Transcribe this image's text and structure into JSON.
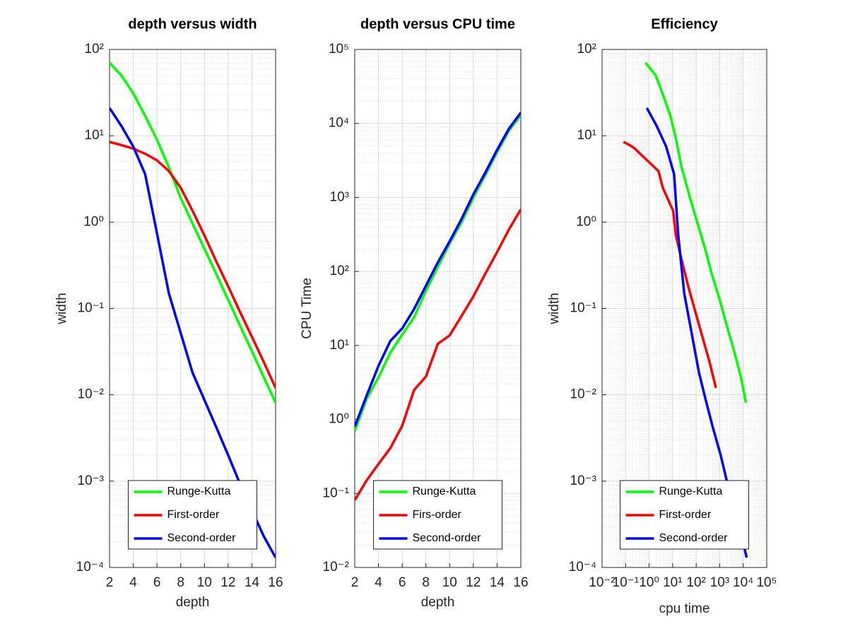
{
  "chart_data": [
    {
      "type": "line",
      "title": "depth versus width",
      "xlabel": "depth",
      "ylabel": "width",
      "x": [
        2,
        3,
        4,
        5,
        6,
        7,
        8,
        9,
        10,
        11,
        12,
        13,
        14,
        15,
        16
      ],
      "xlim": [
        2,
        16
      ],
      "xticks": [
        2,
        4,
        6,
        8,
        10,
        12,
        14,
        16
      ],
      "ylog": true,
      "ylim": [
        0.0001,
        100
      ],
      "yticks": [
        {
          "value": 0.0001,
          "label": "10⁻⁴"
        },
        {
          "value": 0.001,
          "label": "10⁻³"
        },
        {
          "value": 0.01,
          "label": "10⁻²"
        },
        {
          "value": 0.1,
          "label": "10⁻¹"
        },
        {
          "value": 1,
          "label": "10⁰"
        },
        {
          "value": 10,
          "label": "10¹"
        },
        {
          "value": 100,
          "label": "10²"
        }
      ],
      "grid": true,
      "legend": "south",
      "series": [
        {
          "name": "Runge-Kutta",
          "color": "#00ff00",
          "values": [
            70,
            50,
            31,
            17,
            9,
            4.3,
            1.9,
            0.96,
            0.49,
            0.25,
            0.126,
            0.063,
            0.032,
            0.016,
            0.0081
          ]
        },
        {
          "name": "First-order",
          "color": "#ff0000",
          "values": [
            8.5,
            7.8,
            7.1,
            6.2,
            5.2,
            3.9,
            2.5,
            1.35,
            0.7,
            0.35,
            0.18,
            0.091,
            0.047,
            0.024,
            0.012
          ]
        },
        {
          "name": "Second-order",
          "color": "#0000ff",
          "values": [
            21,
            13,
            7.5,
            3.6,
            0.74,
            0.15,
            0.052,
            0.018,
            0.0087,
            0.0042,
            0.002,
            0.00093,
            0.00046,
            0.00023,
            0.00013
          ]
        }
      ]
    },
    {
      "type": "line",
      "title": "depth versus CPU time",
      "xlabel": "depth",
      "ylabel": "CPU Time",
      "x": [
        2,
        3,
        4,
        5,
        6,
        7,
        8,
        9,
        10,
        11,
        12,
        13,
        14,
        15,
        16
      ],
      "xlim": [
        2,
        16
      ],
      "xticks": [
        2,
        4,
        6,
        8,
        10,
        12,
        14,
        16
      ],
      "ylog": true,
      "ylim": [
        0.01,
        100000
      ],
      "yticks": [
        {
          "value": 0.01,
          "label": "10⁻²"
        },
        {
          "value": 0.1,
          "label": "10⁻¹"
        },
        {
          "value": 1,
          "label": "10⁰"
        },
        {
          "value": 10,
          "label": "10¹"
        },
        {
          "value": 100,
          "label": "10²"
        },
        {
          "value": 1000,
          "label": "10³"
        },
        {
          "value": 10000,
          "label": "10⁴"
        },
        {
          "value": 100000,
          "label": "10⁵"
        }
      ],
      "grid": true,
      "legend": "south",
      "series": [
        {
          "name": "Runge-Kutta",
          "color": "#00ff00",
          "values": [
            0.7,
            1.9,
            3.7,
            8,
            14,
            24,
            55,
            115,
            240,
            460,
            1000,
            2000,
            4100,
            8000,
            13000
          ]
        },
        {
          "name": "Firs-order",
          "color": "#ff0000",
          "values": [
            0.081,
            0.15,
            0.25,
            0.41,
            0.82,
            2.5,
            3.8,
            10.5,
            13.7,
            25,
            46,
            93,
            183,
            370,
            690
          ]
        },
        {
          "name": "Second-order",
          "color": "#0000ff",
          "values": [
            0.8,
            2.1,
            5.3,
            11.5,
            17,
            31,
            64,
            132,
            255,
            510,
            1100,
            2150,
            4400,
            8500,
            14000
          ]
        }
      ]
    },
    {
      "type": "line",
      "title": "Efficiency",
      "xlabel": "cpu time",
      "ylabel": "width",
      "xlog": true,
      "xlim": [
        0.01,
        100000
      ],
      "xticks": [
        {
          "value": 0.01,
          "label": "10⁻²"
        },
        {
          "value": 0.1,
          "label": "10⁻¹"
        },
        {
          "value": 1,
          "label": "10⁰"
        },
        {
          "value": 10,
          "label": "10¹"
        },
        {
          "value": 100,
          "label": "10²"
        },
        {
          "value": 1000,
          "label": "10³"
        },
        {
          "value": 10000,
          "label": "10⁴"
        },
        {
          "value": 100000,
          "label": "10⁵"
        }
      ],
      "ylog": true,
      "ylim": [
        0.0001,
        100
      ],
      "yticks": [
        {
          "value": 0.0001,
          "label": "10⁻⁴"
        },
        {
          "value": 0.001,
          "label": "10⁻³"
        },
        {
          "value": 0.01,
          "label": "10⁻²"
        },
        {
          "value": 0.1,
          "label": "10⁻¹"
        },
        {
          "value": 1,
          "label": "10⁰"
        },
        {
          "value": 10,
          "label": "10¹"
        },
        {
          "value": 100,
          "label": "10²"
        }
      ],
      "grid": true,
      "legend": "south",
      "series": [
        {
          "name": "Runge-Kutta",
          "color": "#00ff00",
          "x": [
            0.7,
            1.9,
            3.7,
            8,
            14,
            24,
            55,
            115,
            240,
            460,
            1000,
            2000,
            4100,
            8000,
            13000
          ],
          "values": [
            70,
            50,
            31,
            17,
            9,
            4.3,
            1.9,
            0.96,
            0.49,
            0.25,
            0.126,
            0.063,
            0.032,
            0.016,
            0.0081
          ]
        },
        {
          "name": "First-order",
          "color": "#ff0000",
          "x": [
            0.081,
            0.15,
            0.25,
            0.41,
            0.82,
            2.5,
            3.8,
            10.5,
            13.7,
            25,
            46,
            93,
            183,
            370,
            690
          ],
          "values": [
            8.5,
            7.8,
            7.1,
            6.2,
            5.2,
            3.9,
            2.5,
            1.35,
            0.7,
            0.35,
            0.18,
            0.091,
            0.047,
            0.024,
            0.012
          ]
        },
        {
          "name": "Second-order",
          "color": "#0000ff",
          "x": [
            0.8,
            2.1,
            5.3,
            11.5,
            17,
            31,
            64,
            132,
            255,
            510,
            1100,
            2150,
            4400,
            8500,
            14000
          ],
          "values": [
            21,
            13,
            7.5,
            3.6,
            0.74,
            0.15,
            0.052,
            0.018,
            0.0087,
            0.0042,
            0.002,
            0.00093,
            0.00046,
            0.00023,
            0.00013
          ]
        }
      ]
    }
  ]
}
